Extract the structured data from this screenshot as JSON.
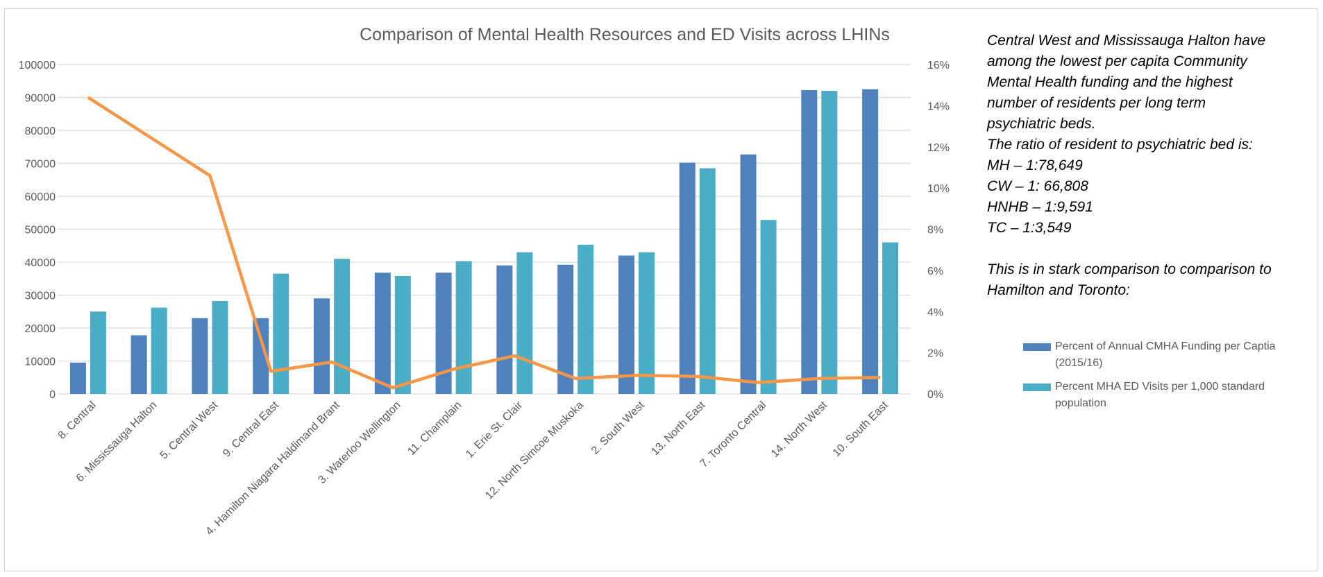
{
  "chart_data": {
    "type": "bar",
    "title": "Comparison of Mental Health Resources  and ED Visits across LHINs",
    "categories": [
      "8. Central",
      "6. Mississauga Halton",
      "5. Central West",
      "9. Central East",
      "4. Hamilton Niagara Haldimand Brant",
      "3. Waterloo Wellington",
      "11. Champlain",
      "1. Erie St. Clair",
      "12. North Simcoe Muskoka",
      "2. South West",
      "13. North East",
      "7. Toronto Central",
      "14. North West",
      "10. South East"
    ],
    "series": [
      {
        "name": "Percent of Annual CMHA Funding per Captia (2015/16)",
        "axis": "left",
        "type": "bar",
        "color": "#4f81bd",
        "values": [
          9500,
          17800,
          23000,
          23000,
          29000,
          36800,
          36800,
          39000,
          39200,
          42000,
          70200,
          72700,
          92200,
          92500
        ]
      },
      {
        "name": "Percent MHA ED Visits per 1,000 standard population",
        "axis": "left",
        "type": "bar",
        "color": "#4bacc6",
        "values": [
          25000,
          26200,
          28200,
          36500,
          41000,
          35800,
          40300,
          43000,
          45300,
          43000,
          68500,
          52800,
          92000,
          46000
        ]
      },
      {
        "name": "",
        "axis": "right",
        "type": "line",
        "color": "#f79646",
        "values": [
          14.4,
          12.5,
          10.6,
          1.1,
          1.55,
          0.3,
          1.2,
          1.85,
          0.75,
          0.9,
          0.85,
          0.55,
          0.75,
          0.8
        ]
      }
    ],
    "left_axis": {
      "min": 0,
      "max": 100000,
      "ticks": [
        "0",
        "10000",
        "20000",
        "30000",
        "40000",
        "50000",
        "60000",
        "70000",
        "80000",
        "90000",
        "100000"
      ]
    },
    "right_axis": {
      "min": 0,
      "max": 16,
      "ticks": [
        "0%",
        "2%",
        "4%",
        "6%",
        "8%",
        "10%",
        "12%",
        "14%",
        "16%"
      ]
    },
    "grid": true,
    "legend": "right"
  },
  "notes": {
    "lines": [
      "Central West and Mississauga Halton have",
      "among the lowest per capita Community",
      "Mental Health funding and the highest",
      "number of residents per long term",
      "psychiatric beds.",
      "The ratio of resident to psychiatric bed is:",
      "MH – 1:78,649",
      "CW – 1: 66,808",
      "HNHB – 1:9,591",
      "TC – 1:3,549",
      "",
      "This is in stark comparison to  comparison to",
      "Hamilton and Toronto:"
    ]
  }
}
